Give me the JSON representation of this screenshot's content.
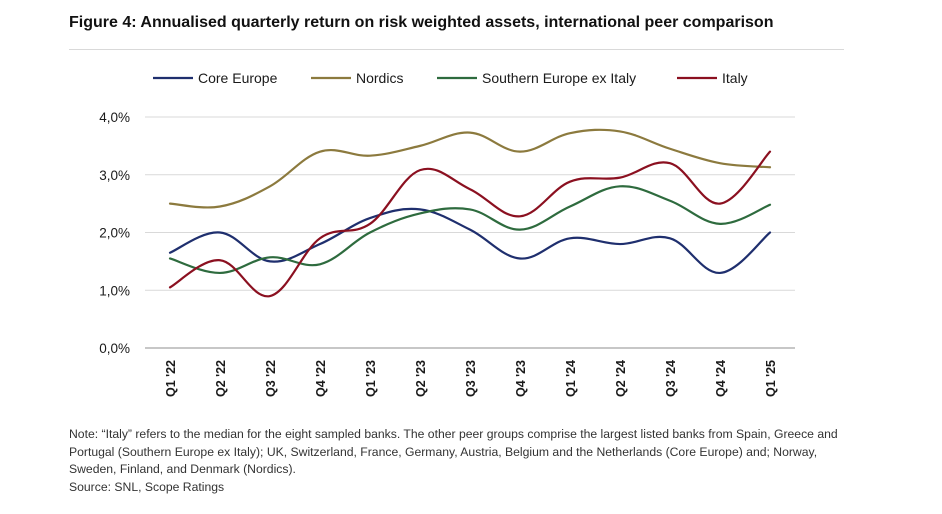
{
  "title": "Figure 4: Annualised quarterly return on risk weighted assets, international peer comparison",
  "note": "Note: “Italy” refers to the median for the eight sampled banks. The other peer groups comprise the largest listed banks from Spain, Greece and Portugal (Southern Europe ex Italy); UK, Switzerland, France, Germany, Austria, Belgium and the Netherlands (Core Europe) and; Norway, Sweden, Finland, and Denmark (Nordics).",
  "source": "Source: SNL, Scope Ratings",
  "chart_data": {
    "type": "line",
    "title": "Annualised quarterly return on risk weighted assets, international peer comparison",
    "xlabel": "",
    "ylabel": "",
    "ylim": [
      0,
      4
    ],
    "yticks": [
      0,
      1,
      2,
      3,
      4
    ],
    "ytick_labels": [
      "0,0%",
      "1,0%",
      "2,0%",
      "3,0%",
      "4,0%"
    ],
    "grid": true,
    "legend_position": "top",
    "categories": [
      "Q1 '22",
      "Q2 '22",
      "Q3 '22",
      "Q4 '22",
      "Q1 '23",
      "Q2 '23",
      "Q3 '23",
      "Q4 '23",
      "Q1 '24",
      "Q2 '24",
      "Q3 '24",
      "Q4 '24",
      "Q1 '25"
    ],
    "series": [
      {
        "name": "Core Europe",
        "color": "#1f2f6e",
        "values": [
          1.65,
          2.0,
          1.5,
          1.8,
          2.25,
          2.4,
          2.05,
          1.55,
          1.9,
          1.8,
          1.9,
          1.3,
          2.0
        ]
      },
      {
        "name": "Nordics",
        "color": "#8c7a3e",
        "values": [
          2.5,
          2.45,
          2.8,
          3.4,
          3.33,
          3.5,
          3.73,
          3.4,
          3.72,
          3.75,
          3.45,
          3.2,
          3.13
        ]
      },
      {
        "name": "Southern Europe ex Italy",
        "color": "#2e6b3e",
        "values": [
          1.55,
          1.3,
          1.57,
          1.45,
          2.0,
          2.33,
          2.4,
          2.05,
          2.45,
          2.8,
          2.55,
          2.15,
          2.48
        ]
      },
      {
        "name": "Italy",
        "color": "#8b1020",
        "values": [
          1.05,
          1.52,
          0.9,
          1.9,
          2.15,
          3.08,
          2.75,
          2.28,
          2.88,
          2.95,
          3.2,
          2.5,
          3.4
        ]
      }
    ]
  }
}
